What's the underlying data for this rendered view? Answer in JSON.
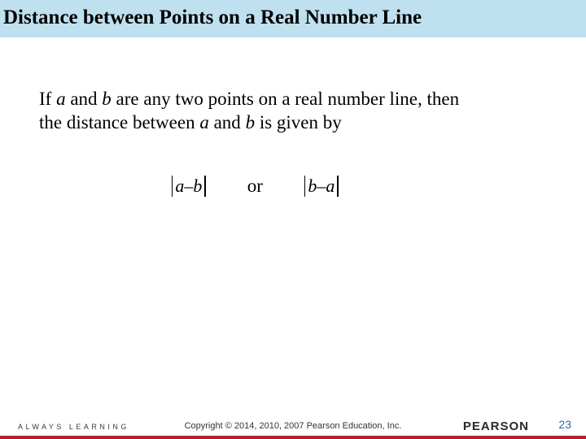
{
  "title_bar": {
    "background_color": "#bfe0ef",
    "text": "Distance between Points on a Real Number Line"
  },
  "body": {
    "line1_prefix": "If ",
    "a": "a",
    "and1": " and ",
    "b": "b",
    "line1_mid": " are any two points on a real number line, then",
    "line2_prefix": "the distance between ",
    "and2": " and ",
    "line2_suffix": " is given by"
  },
  "formula": {
    "left_a": "a",
    "minus": " – ",
    "left_b": "b",
    "or": "or",
    "right_b": "b",
    "right_a": "a"
  },
  "footer": {
    "always_learning": "ALWAYS LEARNING",
    "copyright": "Copyright © 2014, 2010, 2007 Pearson Education, Inc.",
    "brand": "PEARSON",
    "page": "23",
    "strip_color": "#b3202c"
  }
}
